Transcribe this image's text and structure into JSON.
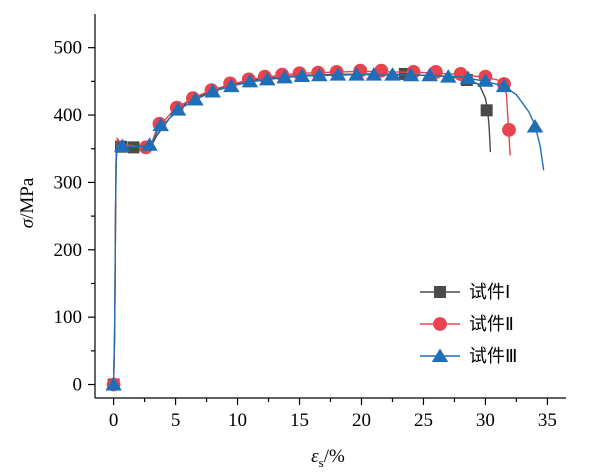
{
  "chart_data": {
    "type": "line",
    "xlabel_symbol": "ε",
    "xlabel_subscript": "s",
    "xlabel_unit": "/%",
    "ylabel_symbol": "σ",
    "ylabel_unit": "/MPa",
    "xlim": [
      -1.5,
      36.5
    ],
    "ylim": [
      -20,
      550
    ],
    "x_ticks": [
      0,
      5,
      10,
      15,
      20,
      25,
      30,
      35
    ],
    "y_ticks": [
      0,
      100,
      200,
      300,
      400,
      500
    ],
    "grid": false,
    "legend_position": "bottom-right",
    "series": [
      {
        "name": "试件Ⅰ",
        "color": "#4a4a4a",
        "marker": "square",
        "curve": [
          [
            0,
            0
          ],
          [
            0.08,
            75
          ],
          [
            0.12,
            160
          ],
          [
            0.15,
            250
          ],
          [
            0.2,
            330
          ],
          [
            0.25,
            345
          ],
          [
            0.35,
            355
          ],
          [
            0.5,
            358
          ],
          [
            1.0,
            353
          ],
          [
            2.0,
            352
          ],
          [
            3.0,
            353
          ],
          [
            3.5,
            370
          ],
          [
            4.5,
            395
          ],
          [
            6,
            420
          ],
          [
            8,
            437
          ],
          [
            10,
            447
          ],
          [
            12,
            454
          ],
          [
            15,
            459
          ],
          [
            20,
            461
          ],
          [
            24,
            460
          ],
          [
            27,
            457
          ],
          [
            28.5,
            453
          ],
          [
            29.5,
            445
          ],
          [
            30.0,
            425
          ],
          [
            30.2,
            405
          ],
          [
            30.3,
            380
          ],
          [
            30.4,
            345
          ]
        ],
        "markers": [
          [
            0,
            0
          ],
          [
            0.6,
            353
          ],
          [
            1.6,
            352
          ],
          [
            23.5,
            461
          ],
          [
            28.5,
            452
          ],
          [
            30.1,
            407
          ]
        ]
      },
      {
        "name": "试件Ⅱ",
        "color": "#e8434e",
        "marker": "circle",
        "curve": [
          [
            0,
            0
          ],
          [
            0.08,
            75
          ],
          [
            0.12,
            160
          ],
          [
            0.15,
            250
          ],
          [
            0.2,
            335
          ],
          [
            0.25,
            350
          ],
          [
            0.3,
            365
          ],
          [
            0.5,
            360
          ],
          [
            1.0,
            356
          ],
          [
            2.0,
            353
          ],
          [
            2.6,
            350
          ],
          [
            3.0,
            355
          ],
          [
            3.5,
            380
          ],
          [
            5,
            410
          ],
          [
            6.5,
            426
          ],
          [
            8,
            438
          ],
          [
            10,
            448
          ],
          [
            12,
            456
          ],
          [
            15,
            462
          ],
          [
            20,
            465
          ],
          [
            25,
            463
          ],
          [
            28,
            460
          ],
          [
            30,
            456
          ],
          [
            31,
            452
          ],
          [
            31.5,
            446
          ],
          [
            31.7,
            430
          ],
          [
            31.8,
            400
          ],
          [
            31.9,
            370
          ],
          [
            32.0,
            340
          ]
        ],
        "markers": [
          [
            0,
            0
          ],
          [
            2.6,
            352
          ],
          [
            3.7,
            387
          ],
          [
            5.1,
            411
          ],
          [
            6.4,
            425
          ],
          [
            7.9,
            437
          ],
          [
            9.4,
            447
          ],
          [
            10.9,
            453
          ],
          [
            12.2,
            457
          ],
          [
            13.6,
            460
          ],
          [
            15.0,
            462
          ],
          [
            16.5,
            463
          ],
          [
            18.0,
            464
          ],
          [
            19.9,
            466
          ],
          [
            21.6,
            466
          ],
          [
            24.2,
            464
          ],
          [
            26.0,
            464
          ],
          [
            28.0,
            461
          ],
          [
            30.0,
            457
          ],
          [
            31.5,
            446
          ],
          [
            31.9,
            378
          ]
        ]
      },
      {
        "name": "试件Ⅲ",
        "color": "#1f6fb8",
        "marker": "triangle",
        "curve": [
          [
            0,
            0
          ],
          [
            0.08,
            75
          ],
          [
            0.12,
            160
          ],
          [
            0.15,
            250
          ],
          [
            0.2,
            330
          ],
          [
            0.25,
            348
          ],
          [
            0.3,
            358
          ],
          [
            0.5,
            355
          ],
          [
            1.0,
            353
          ],
          [
            2.0,
            353
          ],
          [
            3.0,
            354
          ],
          [
            3.5,
            375
          ],
          [
            5,
            405
          ],
          [
            6.5,
            422
          ],
          [
            8,
            435
          ],
          [
            10,
            445
          ],
          [
            12,
            452
          ],
          [
            15,
            458
          ],
          [
            20,
            460
          ],
          [
            25,
            459
          ],
          [
            28,
            457
          ],
          [
            30,
            450
          ],
          [
            31.5,
            443
          ],
          [
            32.5,
            430
          ],
          [
            33.5,
            405
          ],
          [
            34.0,
            385
          ],
          [
            34.4,
            355
          ],
          [
            34.7,
            318
          ]
        ],
        "markers": [
          [
            0,
            0
          ],
          [
            0.7,
            354
          ],
          [
            2.9,
            356
          ],
          [
            3.8,
            385
          ],
          [
            5.2,
            408
          ],
          [
            6.6,
            423
          ],
          [
            8.0,
            435
          ],
          [
            9.5,
            443
          ],
          [
            11.0,
            450
          ],
          [
            12.4,
            453
          ],
          [
            13.8,
            456
          ],
          [
            15.2,
            458
          ],
          [
            16.6,
            459
          ],
          [
            18.1,
            460
          ],
          [
            19.6,
            460
          ],
          [
            21.0,
            460
          ],
          [
            22.5,
            460
          ],
          [
            24.0,
            459
          ],
          [
            25.5,
            459
          ],
          [
            27.0,
            457
          ],
          [
            28.6,
            455
          ],
          [
            30.0,
            451
          ],
          [
            31.5,
            443
          ],
          [
            34.0,
            383
          ]
        ]
      }
    ]
  }
}
